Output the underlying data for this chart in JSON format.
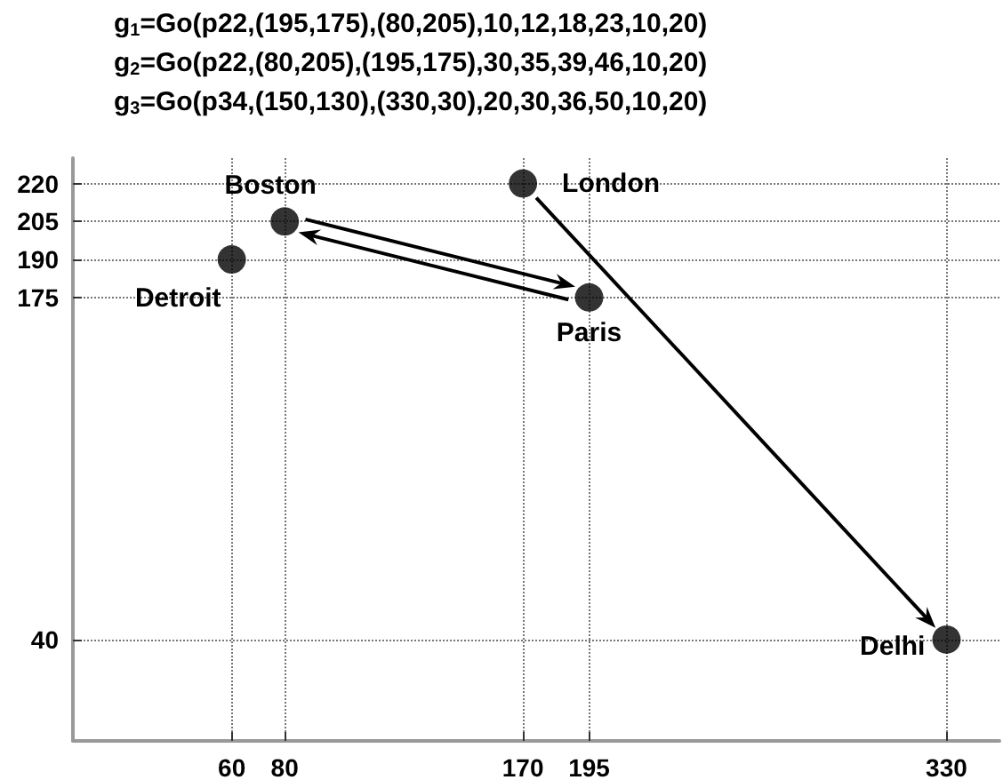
{
  "chart_data": {
    "type": "scatter",
    "annotations": [
      "g$_{1}$=Go(p22,(195,175),(80,205),10,12,18,23,10,20)",
      "g$_{2}$=Go(p22,(80,205),(195,175),30,35,39,46,10,20)",
      "g$_{3}$=Go(p34,(150,130),(330,30),20,30,36,50,10,20)",
      {
        "text": "Detroit",
        "x": 60,
        "y": 190
      },
      {
        "text": "Boston",
        "x": 80,
        "y": 205
      },
      {
        "text": "London",
        "x": 170,
        "y": 220
      },
      {
        "text": "Paris",
        "x": 195,
        "y": 175
      },
      {
        "text": "Delhi",
        "x": 330,
        "y": 40
      }
    ],
    "series": [
      {
        "type": "scatter",
        "color": "#000000",
        "marker": "circle",
        "x": [
          60,
          80,
          170,
          195,
          330
        ],
        "values": [
          190,
          205,
          220,
          175,
          40
        ]
      }
    ],
    "grid": true,
    "xlim": [
      0,
      350
    ],
    "ylim": [
      0,
      230
    ],
    "xticks": [
      60,
      80,
      170,
      195,
      330
    ],
    "yticks": [
      40,
      175,
      190,
      205,
      220
    ]
  }
}
